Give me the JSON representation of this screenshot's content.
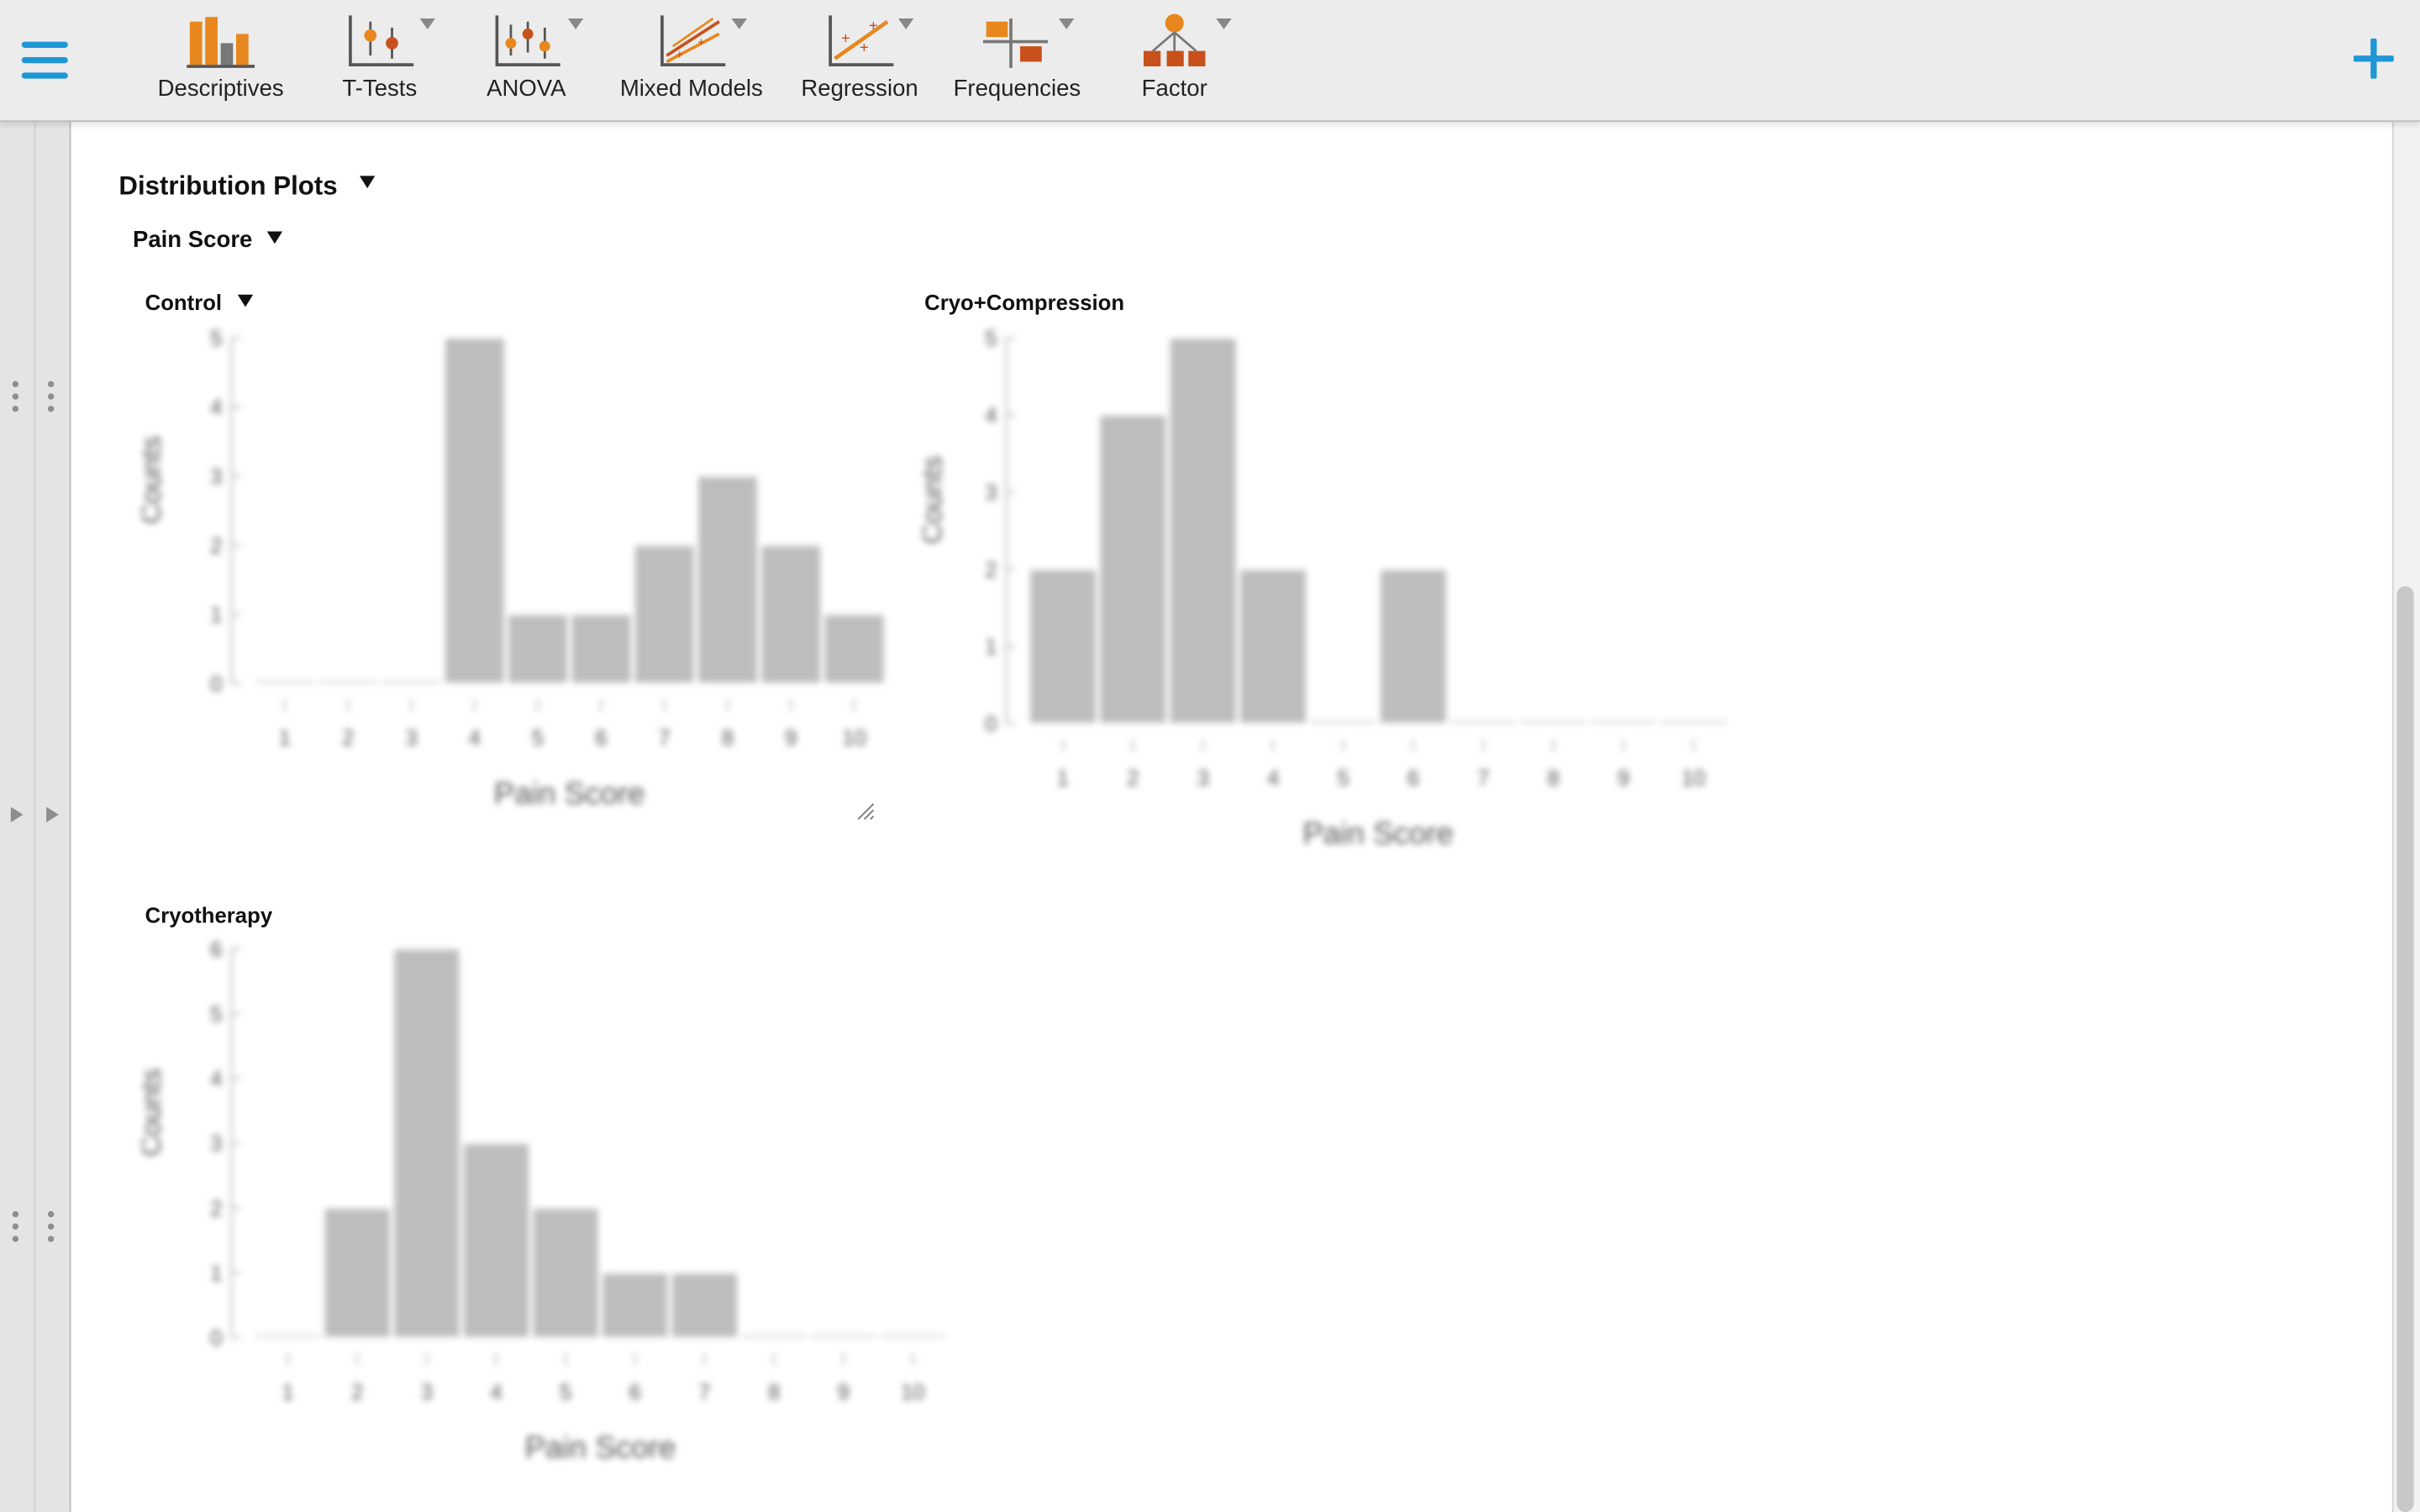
{
  "toolbar": {
    "items": [
      {
        "label": "Descriptives",
        "icon": "descriptives-icon",
        "has_menu": false
      },
      {
        "label": "T-Tests",
        "icon": "t-tests-icon",
        "has_menu": true
      },
      {
        "label": "ANOVA",
        "icon": "anova-icon",
        "has_menu": true
      },
      {
        "label": "Mixed Models",
        "icon": "mixed-models-icon",
        "has_menu": true
      },
      {
        "label": "Regression",
        "icon": "regression-icon",
        "has_menu": true
      },
      {
        "label": "Frequencies",
        "icon": "frequencies-icon",
        "has_menu": true
      },
      {
        "label": "Factor",
        "icon": "factor-icon",
        "has_menu": true
      }
    ],
    "menu_icon": "hamburger-menu-icon",
    "add_icon": "plus-icon"
  },
  "results": {
    "section_title": "Distribution Plots",
    "variable_title": "Pain Score"
  },
  "colors": {
    "accent": "#1f97d6",
    "icon_orange": "#e8871e",
    "icon_dark_orange": "#c8501a",
    "bar_fill": "#bdbdbd"
  },
  "chart_data": [
    {
      "type": "bar",
      "title": "Control",
      "xlabel": "Pain Score",
      "ylabel": "Counts",
      "categories": [
        "1",
        "2",
        "3",
        "4",
        "5",
        "6",
        "7",
        "8",
        "9",
        "10"
      ],
      "values": [
        0,
        0,
        0,
        5,
        1,
        1,
        2,
        3,
        2,
        1
      ],
      "ylim": [
        0,
        5
      ],
      "yticks": [
        "0",
        "1",
        "2",
        "3",
        "4",
        "5"
      ]
    },
    {
      "type": "bar",
      "title": "Cryo+Compression",
      "xlabel": "Pain Score",
      "ylabel": "Counts",
      "categories": [
        "1",
        "2",
        "3",
        "4",
        "5",
        "6",
        "7",
        "8",
        "9",
        "10"
      ],
      "values": [
        2,
        4,
        5,
        2,
        0,
        2,
        0,
        0,
        0,
        0
      ],
      "ylim": [
        0,
        5
      ],
      "yticks": [
        "0",
        "1",
        "2",
        "3",
        "4",
        "5"
      ]
    },
    {
      "type": "bar",
      "title": "Cryotherapy",
      "xlabel": "Pain Score",
      "ylabel": "Counts",
      "categories": [
        "1",
        "2",
        "3",
        "4",
        "5",
        "6",
        "7",
        "8",
        "9",
        "10"
      ],
      "values": [
        0,
        2,
        6,
        3,
        2,
        1,
        1,
        0,
        0,
        0
      ],
      "ylim": [
        0,
        6
      ],
      "yticks": [
        "0",
        "1",
        "2",
        "3",
        "4",
        "5",
        "6"
      ]
    }
  ]
}
